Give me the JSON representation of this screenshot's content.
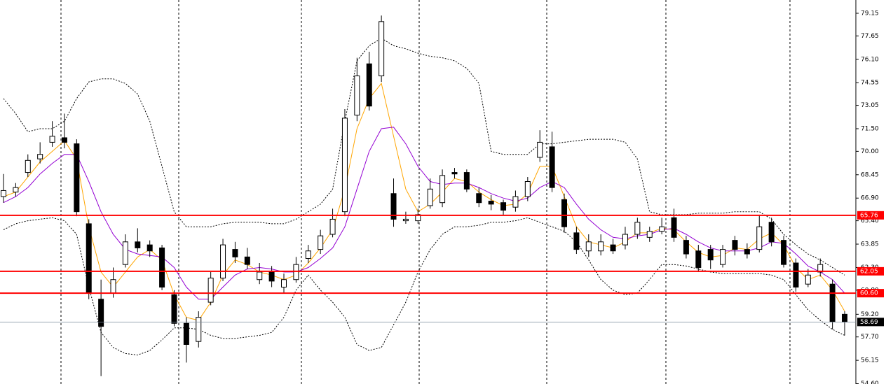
{
  "chart_data": {
    "type": "candlestick",
    "up_color": "#ffffff",
    "down_color": "#000000",
    "open": [
      67.0,
      67.3,
      68.6,
      69.5,
      70.6,
      70.9,
      70.5,
      65.2,
      60.2,
      60.6,
      62.5,
      64.0,
      63.8,
      63.6,
      60.5,
      58.6,
      57.4,
      60.0,
      61.6,
      63.5,
      63.0,
      61.5,
      62.0,
      61.0,
      61.5,
      62.9,
      63.5,
      64.5,
      66.0,
      72.4,
      75.8,
      75.0,
      67.2,
      65.4,
      65.4,
      66.4,
      66.6,
      68.6,
      68.6,
      67.2,
      66.7,
      66.6,
      66.3,
      67.0,
      69.6,
      70.3,
      66.8,
      64.6,
      63.4,
      63.4,
      63.8,
      63.8,
      64.5,
      64.3,
      64.7,
      65.6,
      64.1,
      63.4,
      63.5,
      62.5,
      64.1,
      63.5,
      63.5,
      65.3,
      64.1,
      62.6,
      61.2,
      62.0,
      61.2,
      59.2
    ],
    "high": [
      68.5,
      67.9,
      69.8,
      70.6,
      72.0,
      72.5,
      70.8,
      65.5,
      61.5,
      62.3,
      64.5,
      64.9,
      64.1,
      63.8,
      60.8,
      59.0,
      59.4,
      62.0,
      64.2,
      64.0,
      63.6,
      62.6,
      62.4,
      61.9,
      63.0,
      63.8,
      64.8,
      66.2,
      72.8,
      76.2,
      76.6,
      79.0,
      68.2,
      66.0,
      66.2,
      68.2,
      68.8,
      68.9,
      68.8,
      67.6,
      67.1,
      66.8,
      67.4,
      68.3,
      71.4,
      71.3,
      67.2,
      65.0,
      64.5,
      64.5,
      64.2,
      65.0,
      65.6,
      65.0,
      65.6,
      66.2,
      64.4,
      63.8,
      63.8,
      63.8,
      64.4,
      63.9,
      65.8,
      65.6,
      64.4,
      62.9,
      62.2,
      62.9,
      61.5,
      59.4
    ],
    "low": [
      66.6,
      67.0,
      68.3,
      69.2,
      70.3,
      70.2,
      65.7,
      60.2,
      55.1,
      60.3,
      62.3,
      63.3,
      63.0,
      60.8,
      58.4,
      56.0,
      57.0,
      59.8,
      61.4,
      62.6,
      62.2,
      61.2,
      61.0,
      60.6,
      61.3,
      62.6,
      63.2,
      64.3,
      65.7,
      72.0,
      72.7,
      74.6,
      65.0,
      65.2,
      65.2,
      66.2,
      66.3,
      68.2,
      67.3,
      66.3,
      66.1,
      65.8,
      66.0,
      66.7,
      69.3,
      67.3,
      64.6,
      63.2,
      63.0,
      63.1,
      63.2,
      63.5,
      64.2,
      64.0,
      64.5,
      64.0,
      62.9,
      62.0,
      62.2,
      62.3,
      63.1,
      62.9,
      63.3,
      63.7,
      62.3,
      60.7,
      61.0,
      61.7,
      58.2,
      57.8
    ],
    "close": [
      67.4,
      67.6,
      69.4,
      69.8,
      71.0,
      70.6,
      66.0,
      60.6,
      58.4,
      61.5,
      64.0,
      63.6,
      63.4,
      61.0,
      58.6,
      57.2,
      59.0,
      61.6,
      63.8,
      63.0,
      62.5,
      62.0,
      61.4,
      61.5,
      62.5,
      63.4,
      64.4,
      65.5,
      72.2,
      75.0,
      73.0,
      78.6,
      65.5,
      65.5,
      65.8,
      67.5,
      68.4,
      68.5,
      67.5,
      66.6,
      66.5,
      66.1,
      67.0,
      68.0,
      70.6,
      67.6,
      65.0,
      63.5,
      64.0,
      64.0,
      63.4,
      64.5,
      65.3,
      64.7,
      65.0,
      64.3,
      63.2,
      62.3,
      62.8,
      63.5,
      63.5,
      63.2,
      65.0,
      64.0,
      62.5,
      61.0,
      61.8,
      62.5,
      58.7,
      58.69
    ],
    "overlays": [
      {
        "color": "#000000",
        "dashed": true,
        "values": [
          73.5,
          72.5,
          71.3,
          71.5,
          71.5,
          72,
          73.5,
          74.6,
          74.8,
          74.8,
          74.5,
          73.8,
          72,
          69,
          66,
          65,
          65,
          65,
          65.2,
          65.3,
          65.3,
          65.3,
          65.2,
          65.2,
          65.5,
          66,
          66.5,
          67.5,
          72,
          76,
          77,
          77.5,
          77,
          76.8,
          76.5,
          76.3,
          76.2,
          76,
          75.5,
          74.5,
          70,
          69.8,
          69.8,
          69.8,
          70.5,
          70.5,
          70.6,
          70.7,
          70.8,
          70.8,
          70.8,
          70.6,
          69.5,
          66,
          65.8,
          65.8,
          65.8,
          65.9,
          65.9,
          65.9,
          66,
          66,
          66,
          65.5,
          64.5,
          63.8,
          63.2,
          62.8,
          62.3,
          61.8
        ]
      },
      {
        "color": "#000000",
        "dashed": true,
        "values": [
          64.8,
          65.2,
          65.4,
          65.5,
          65.6,
          65.4,
          64.5,
          61,
          58,
          57,
          56.6,
          56.5,
          56.8,
          57.5,
          58.3,
          58.3,
          58.2,
          57.8,
          57.6,
          57.6,
          57.7,
          57.8,
          58,
          59,
          60.8,
          61.8,
          60.8,
          60,
          59,
          57.2,
          56.8,
          57,
          58.5,
          60,
          62,
          63.5,
          64.5,
          65,
          65,
          65.1,
          65.3,
          65.3,
          65.4,
          65.6,
          65.3,
          65,
          64.7,
          64,
          62.8,
          61.5,
          60.8,
          60.5,
          60.6,
          61.5,
          62.5,
          62.5,
          62.4,
          62.2,
          62,
          61.9,
          61.9,
          61.9,
          61.9,
          61.8,
          61.5,
          60.5,
          59.5,
          58.8,
          58.2,
          57.8
        ]
      },
      {
        "color": "#ffa500",
        "dashed": false,
        "values": [
          67,
          67.3,
          68.3,
          69.3,
          70,
          70.7,
          69.5,
          65,
          62,
          61,
          62,
          63,
          63.5,
          62.8,
          60.5,
          59,
          58.8,
          60,
          61.8,
          62.8,
          62.5,
          62,
          61.8,
          61.5,
          61.8,
          62.6,
          63.6,
          64.8,
          67.5,
          71.5,
          73.5,
          74.5,
          71,
          67.5,
          66,
          66.5,
          67.3,
          68.2,
          68,
          67.3,
          66.8,
          66.4,
          66.5,
          67.2,
          69,
          69,
          67,
          65,
          64,
          63.8,
          63.6,
          64,
          64.6,
          64.6,
          64.9,
          64.8,
          64,
          63.3,
          63,
          63.1,
          63.6,
          63.5,
          64.2,
          64.6,
          63.8,
          62.3,
          61.5,
          61.8,
          60.8,
          59.4
        ]
      },
      {
        "color": "#9400d3",
        "dashed": false,
        "values": [
          66.6,
          67,
          67.6,
          68.5,
          69.2,
          69.8,
          69.8,
          68,
          66,
          64.5,
          63.5,
          63.2,
          63.1,
          63,
          62.3,
          61,
          60.2,
          60.2,
          61,
          61.8,
          62.2,
          62.3,
          62.2,
          62,
          62,
          62.3,
          62.9,
          63.6,
          65,
          67.5,
          70,
          71.5,
          71.6,
          70.5,
          69,
          68,
          67.8,
          67.9,
          67.9,
          67.6,
          67.2,
          66.9,
          66.7,
          66.9,
          67.6,
          68,
          67.6,
          66.5,
          65.5,
          64.8,
          64.3,
          64.2,
          64.4,
          64.5,
          64.8,
          64.9,
          64.5,
          64,
          63.6,
          63.4,
          63.4,
          63.4,
          63.6,
          64,
          63.9,
          63.2,
          62.4,
          62,
          61.5,
          60.6
        ]
      }
    ],
    "levels": [
      {
        "value": 65.76,
        "color": "#ff0000"
      },
      {
        "value": 62.05,
        "color": "#ff0000"
      },
      {
        "value": {
          "value": 60.6,
          "label": "60.60"
        },
        "color": "#ff0000"
      }
    ],
    "current_price": {
      "value": 58.69,
      "color": "#778899"
    },
    "ylim": [
      54.58,
      80.03
    ],
    "yticks": [
      79.15,
      77.65,
      {
        "value": 76.1,
        "label": "76.10"
      },
      74.55,
      73.05,
      {
        "value": 71.5,
        "label": "71.50"
      },
      {
        "value": 70,
        "label": "70.00"
      },
      68.45,
      {
        "value": 66.9,
        "label": "66.90"
      },
      {
        "value": 65.4,
        "label": "65.40"
      },
      63.85,
      {
        "value": 62.3,
        "label": "62.30"
      },
      {
        "value": 60.8,
        "label": "60.80"
      },
      {
        "value": 59.2,
        "label": "59.20"
      },
      {
        "value": 57.7,
        "label": "57.70"
      },
      56.15,
      {
        "value": 54.6,
        "label": "54.60"
      }
    ]
  }
}
